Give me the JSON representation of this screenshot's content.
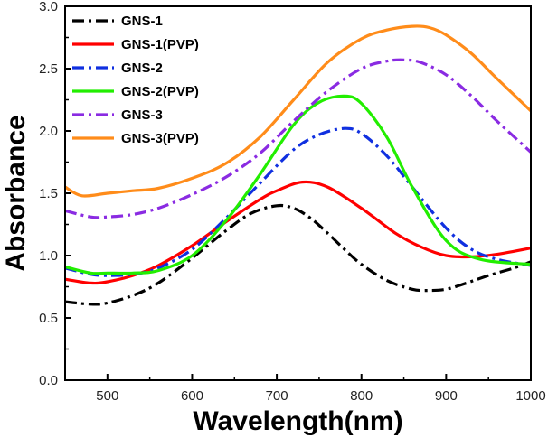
{
  "chart_data": {
    "type": "line",
    "title": "",
    "xlabel": "Wavelength(nm)",
    "ylabel": "Absorbance",
    "xlim": [
      450,
      1000
    ],
    "ylim": [
      0.0,
      3.0
    ],
    "x_ticks": [
      500,
      600,
      700,
      800,
      900,
      1000
    ],
    "y_ticks": [
      0.0,
      0.5,
      1.0,
      1.5,
      2.0,
      2.5,
      3.0
    ],
    "y_tick_labels": [
      "0.0",
      "0.5",
      "1.0",
      "1.5",
      "2.0",
      "2.5",
      "3.0"
    ],
    "legend_position": "top-left",
    "series": [
      {
        "name": "GNS-1",
        "color": "#000000",
        "style": "dash-dot",
        "x": [
          450,
          480,
          500,
          530,
          560,
          600,
          640,
          670,
          700,
          720,
          740,
          760,
          780,
          800,
          830,
          860,
          880,
          900,
          920,
          950,
          980,
          1000
        ],
        "y": [
          0.63,
          0.61,
          0.62,
          0.68,
          0.78,
          0.98,
          1.2,
          1.34,
          1.4,
          1.38,
          1.3,
          1.18,
          1.05,
          0.93,
          0.8,
          0.73,
          0.72,
          0.73,
          0.77,
          0.84,
          0.9,
          0.95
        ]
      },
      {
        "name": "GNS-1(PVP)",
        "color": "#ff0000",
        "style": "solid",
        "x": [
          450,
          480,
          500,
          530,
          560,
          600,
          640,
          680,
          700,
          730,
          760,
          800,
          840,
          870,
          900,
          930,
          960,
          1000
        ],
        "y": [
          0.81,
          0.78,
          0.79,
          0.84,
          0.92,
          1.08,
          1.27,
          1.45,
          1.52,
          1.59,
          1.55,
          1.38,
          1.18,
          1.07,
          1.0,
          0.99,
          1.01,
          1.06
        ]
      },
      {
        "name": "GNS-2",
        "color": "#1030e0",
        "style": "dash-dot",
        "x": [
          450,
          480,
          500,
          530,
          560,
          600,
          640,
          680,
          720,
          750,
          780,
          800,
          830,
          860,
          900,
          930,
          960,
          1000
        ],
        "y": [
          0.9,
          0.85,
          0.84,
          0.85,
          0.9,
          1.05,
          1.3,
          1.58,
          1.85,
          1.97,
          2.02,
          1.98,
          1.8,
          1.55,
          1.22,
          1.05,
          0.97,
          0.92
        ]
      },
      {
        "name": "GNS-2(PVP)",
        "color": "#22ee00",
        "style": "solid",
        "x": [
          450,
          480,
          500,
          530,
          560,
          600,
          640,
          680,
          720,
          750,
          780,
          800,
          830,
          860,
          900,
          940,
          1000
        ],
        "y": [
          0.91,
          0.86,
          0.86,
          0.86,
          0.88,
          1.0,
          1.28,
          1.65,
          2.05,
          2.23,
          2.28,
          2.22,
          1.95,
          1.55,
          1.12,
          0.97,
          0.93
        ]
      },
      {
        "name": "GNS-3",
        "color": "#8a2be2",
        "style": "dash-dot",
        "x": [
          450,
          480,
          500,
          530,
          560,
          600,
          640,
          680,
          720,
          760,
          800,
          830,
          850,
          870,
          900,
          930,
          960,
          1000
        ],
        "y": [
          1.36,
          1.31,
          1.31,
          1.33,
          1.38,
          1.49,
          1.63,
          1.82,
          2.08,
          2.32,
          2.5,
          2.56,
          2.57,
          2.55,
          2.45,
          2.28,
          2.08,
          1.83
        ]
      },
      {
        "name": "GNS-3(PVP)",
        "color": "#ff8c1a",
        "style": "solid",
        "x": [
          450,
          470,
          500,
          530,
          560,
          600,
          640,
          680,
          720,
          760,
          800,
          830,
          860,
          880,
          900,
          930,
          960,
          1000
        ],
        "y": [
          1.55,
          1.48,
          1.5,
          1.52,
          1.54,
          1.62,
          1.74,
          1.95,
          2.25,
          2.55,
          2.74,
          2.81,
          2.84,
          2.83,
          2.77,
          2.62,
          2.42,
          2.16
        ]
      }
    ]
  }
}
